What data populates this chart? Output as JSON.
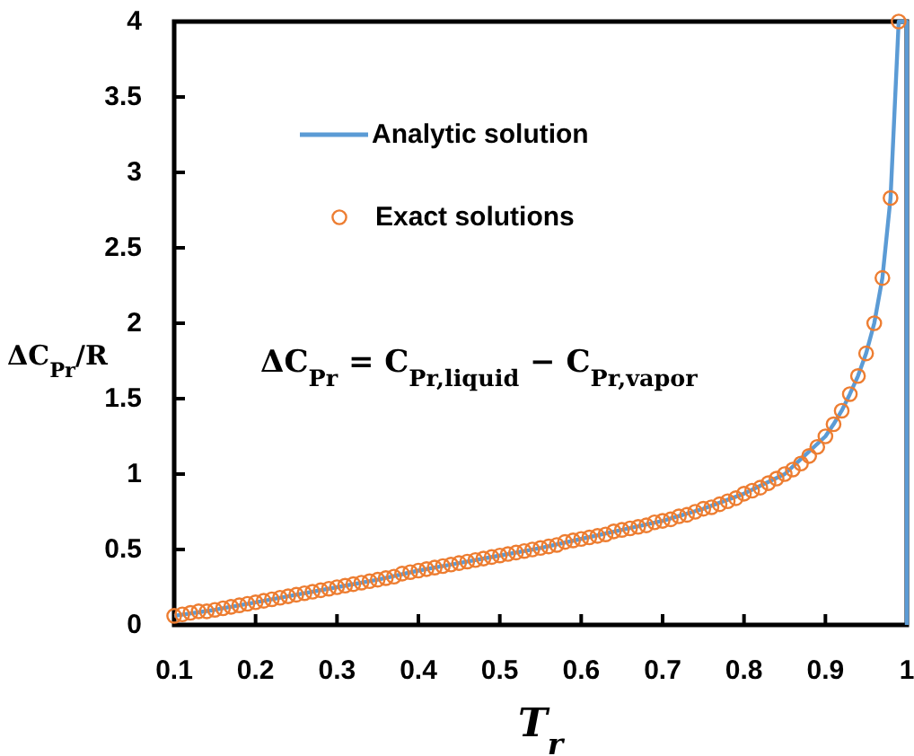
{
  "chart_data": {
    "type": "line",
    "xlabel": "T$_{r}$",
    "ylabel": "ΔC$_{Pr}$/R",
    "xlim": [
      0.1,
      1
    ],
    "ylim": [
      0,
      4
    ],
    "xticks": [
      0.1,
      0.2,
      0.3,
      0.4,
      0.5,
      0.6,
      0.7,
      0.8,
      0.9,
      1
    ],
    "yticks": [
      0,
      0.5,
      1,
      1.5,
      2,
      2.5,
      3,
      3.5,
      4
    ],
    "grid": false,
    "legend": "top left",
    "annotations": [
      "ΔC$_{Pr}$ = C$_{Pr,liquid}$ − C$_{Pr,vapor}$"
    ],
    "series": [
      {
        "name": "Analytic solution",
        "color": "#5b9bd5",
        "marker": "none",
        "line_style": "solid",
        "x": [
          0.1,
          0.15,
          0.2,
          0.25,
          0.3,
          0.35,
          0.4,
          0.45,
          0.5,
          0.55,
          0.6,
          0.65,
          0.7,
          0.75,
          0.8,
          0.85,
          0.9,
          0.91,
          0.92,
          0.93,
          0.94,
          0.95,
          0.96,
          0.97,
          0.98,
          0.99,
          1,
          1
        ],
        "values": [
          0.06,
          0.1,
          0.15,
          0.2,
          0.25,
          0.3,
          0.36,
          0.41,
          0.46,
          0.51,
          0.57,
          0.63,
          0.69,
          0.77,
          0.87,
          1.0,
          1.25,
          1.33,
          1.42,
          1.53,
          1.65,
          1.8,
          2.0,
          2.3,
          2.83,
          4.0,
          4.0,
          0
        ]
      },
      {
        "name": "Exact solutions",
        "type": "scatter",
        "color": "#ed7d31",
        "marker": "circle",
        "x": [
          0.1,
          0.11,
          0.12,
          0.13,
          0.14,
          0.15,
          0.16,
          0.17,
          0.18,
          0.19,
          0.2,
          0.21,
          0.22,
          0.23,
          0.24,
          0.25,
          0.26,
          0.27,
          0.28,
          0.29,
          0.3,
          0.31,
          0.32,
          0.33,
          0.34,
          0.35,
          0.36,
          0.37,
          0.38,
          0.39,
          0.4,
          0.41,
          0.42,
          0.43,
          0.44,
          0.45,
          0.46,
          0.47,
          0.48,
          0.49,
          0.5,
          0.51,
          0.52,
          0.53,
          0.54,
          0.55,
          0.56,
          0.57,
          0.58,
          0.59,
          0.6,
          0.61,
          0.62,
          0.63,
          0.64,
          0.65,
          0.66,
          0.67,
          0.68,
          0.69,
          0.7,
          0.71,
          0.72,
          0.73,
          0.74,
          0.75,
          0.76,
          0.77,
          0.78,
          0.79,
          0.8,
          0.81,
          0.82,
          0.83,
          0.84,
          0.85,
          0.86,
          0.87,
          0.88,
          0.89,
          0.9,
          0.91,
          0.92,
          0.93,
          0.94,
          0.95,
          0.96,
          0.97,
          0.98,
          0.99
        ],
        "values": [
          0.06,
          0.07,
          0.08,
          0.09,
          0.09,
          0.1,
          0.11,
          0.12,
          0.13,
          0.14,
          0.15,
          0.16,
          0.17,
          0.18,
          0.19,
          0.2,
          0.21,
          0.22,
          0.23,
          0.24,
          0.25,
          0.26,
          0.27,
          0.28,
          0.29,
          0.3,
          0.31,
          0.32,
          0.34,
          0.35,
          0.36,
          0.37,
          0.38,
          0.39,
          0.4,
          0.41,
          0.42,
          0.43,
          0.44,
          0.45,
          0.46,
          0.47,
          0.48,
          0.49,
          0.5,
          0.51,
          0.52,
          0.53,
          0.55,
          0.56,
          0.57,
          0.58,
          0.59,
          0.6,
          0.62,
          0.63,
          0.64,
          0.65,
          0.66,
          0.68,
          0.69,
          0.7,
          0.72,
          0.73,
          0.75,
          0.77,
          0.78,
          0.8,
          0.82,
          0.84,
          0.87,
          0.89,
          0.91,
          0.94,
          0.97,
          1.0,
          1.03,
          1.07,
          1.12,
          1.18,
          1.25,
          1.33,
          1.42,
          1.53,
          1.65,
          1.8,
          2.0,
          2.3,
          2.83,
          4.0
        ]
      }
    ]
  }
}
